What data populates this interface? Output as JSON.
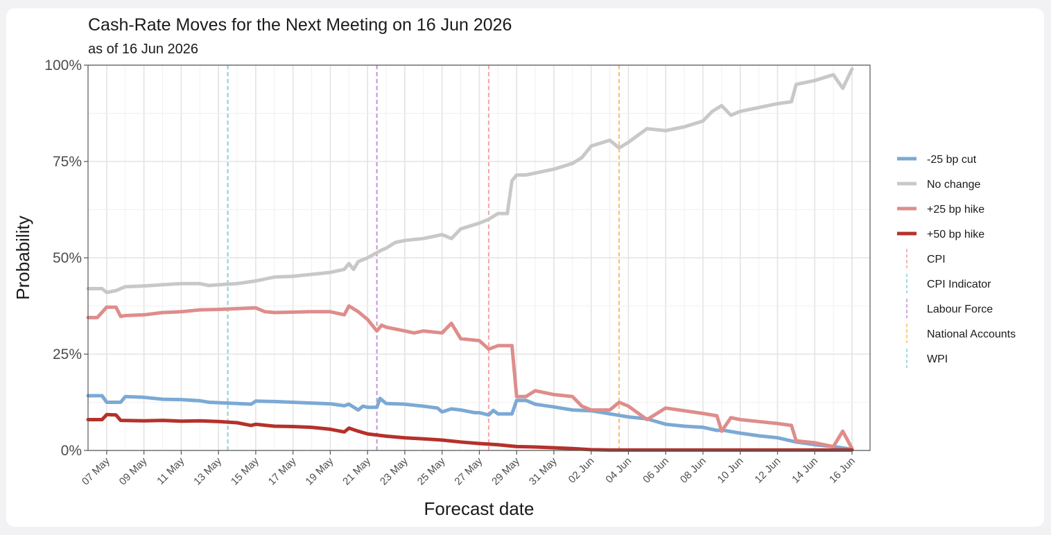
{
  "chart_data": {
    "type": "line",
    "title": "Cash-Rate Moves for the Next Meeting on 16 Jun 2026",
    "subtitle": "as of 16 Jun 2026",
    "xlabel": "Forecast date",
    "ylabel": "Probability",
    "ylim": [
      0,
      1
    ],
    "xlim": [
      "2026-05-06",
      "2026-06-16"
    ],
    "y_ticks": [
      {
        "value": 0,
        "label": "0%"
      },
      {
        "value": 0.25,
        "label": "25%"
      },
      {
        "value": 0.5,
        "label": "50%"
      },
      {
        "value": 0.75,
        "label": "75%"
      },
      {
        "value": 1,
        "label": "100%"
      }
    ],
    "x_ticks": [
      {
        "date": "2026-05-07",
        "label": "07 May"
      },
      {
        "date": "2026-05-09",
        "label": "09 May"
      },
      {
        "date": "2026-05-11",
        "label": "11 May"
      },
      {
        "date": "2026-05-13",
        "label": "13 May"
      },
      {
        "date": "2026-05-15",
        "label": "15 May"
      },
      {
        "date": "2026-05-17",
        "label": "17 May"
      },
      {
        "date": "2026-05-19",
        "label": "19 May"
      },
      {
        "date": "2026-05-21",
        "label": "21 May"
      },
      {
        "date": "2026-05-23",
        "label": "23 May"
      },
      {
        "date": "2026-05-25",
        "label": "25 May"
      },
      {
        "date": "2026-05-27",
        "label": "27 May"
      },
      {
        "date": "2026-05-29",
        "label": "29 May"
      },
      {
        "date": "2026-05-31",
        "label": "31 May"
      },
      {
        "date": "2026-06-02",
        "label": "02 Jun"
      },
      {
        "date": "2026-06-04",
        "label": "04 Jun"
      },
      {
        "date": "2026-06-06",
        "label": "06 Jun"
      },
      {
        "date": "2026-06-08",
        "label": "08 Jun"
      },
      {
        "date": "2026-06-10",
        "label": "10 Jun"
      },
      {
        "date": "2026-06-12",
        "label": "12 Jun"
      },
      {
        "date": "2026-06-14",
        "label": "14 Jun"
      },
      {
        "date": "2026-06-16",
        "label": "16 Jun"
      }
    ],
    "grid": true,
    "legend_position": "right",
    "series": [
      {
        "name": "-25 bp cut",
        "color": "#7ca9d4",
        "points": [
          [
            "2026-05-06",
            0.142
          ],
          [
            "2026-05-06T18:00",
            0.142
          ],
          [
            "2026-05-07",
            0.125
          ],
          [
            "2026-05-07T18:00",
            0.125
          ],
          [
            "2026-05-08",
            0.14
          ],
          [
            "2026-05-09",
            0.138
          ],
          [
            "2026-05-10",
            0.133
          ],
          [
            "2026-05-11",
            0.132
          ],
          [
            "2026-05-12",
            0.129
          ],
          [
            "2026-05-12T12:00",
            0.125
          ],
          [
            "2026-05-14",
            0.122
          ],
          [
            "2026-05-14T18:00",
            0.12
          ],
          [
            "2026-05-15",
            0.128
          ],
          [
            "2026-05-16",
            0.127
          ],
          [
            "2026-05-17",
            0.125
          ],
          [
            "2026-05-18",
            0.123
          ],
          [
            "2026-05-19",
            0.121
          ],
          [
            "2026-05-19T18:00",
            0.116
          ],
          [
            "2026-05-20",
            0.12
          ],
          [
            "2026-05-20T12:00",
            0.105
          ],
          [
            "2026-05-20T18:00",
            0.115
          ],
          [
            "2026-05-21",
            0.112
          ],
          [
            "2026-05-21T12:00",
            0.112
          ],
          [
            "2026-05-21T16:00",
            0.135
          ],
          [
            "2026-05-22",
            0.122
          ],
          [
            "2026-05-23",
            0.12
          ],
          [
            "2026-05-24",
            0.115
          ],
          [
            "2026-05-24T18:00",
            0.11
          ],
          [
            "2026-05-25",
            0.1
          ],
          [
            "2026-05-25T12:00",
            0.108
          ],
          [
            "2026-05-26",
            0.105
          ],
          [
            "2026-05-26T18:00",
            0.098
          ],
          [
            "2026-05-27",
            0.098
          ],
          [
            "2026-05-27T12:00",
            0.092
          ],
          [
            "2026-05-27T18:00",
            0.104
          ],
          [
            "2026-05-28",
            0.095
          ],
          [
            "2026-05-28T18:00",
            0.095
          ],
          [
            "2026-05-29",
            0.13
          ],
          [
            "2026-05-29T12:00",
            0.13
          ],
          [
            "2026-05-30",
            0.12
          ],
          [
            "2026-05-31",
            0.113
          ],
          [
            "2026-06-01",
            0.105
          ],
          [
            "2026-06-02",
            0.103
          ],
          [
            "2026-06-03",
            0.095
          ],
          [
            "2026-06-04",
            0.087
          ],
          [
            "2026-06-05",
            0.082
          ],
          [
            "2026-06-06",
            0.068
          ],
          [
            "2026-06-07",
            0.063
          ],
          [
            "2026-06-08",
            0.06
          ],
          [
            "2026-06-08T18:00",
            0.052
          ],
          [
            "2026-06-09",
            0.053
          ],
          [
            "2026-06-10",
            0.045
          ],
          [
            "2026-06-11",
            0.038
          ],
          [
            "2026-06-12",
            0.033
          ],
          [
            "2026-06-13",
            0.022
          ],
          [
            "2026-06-14",
            0.015
          ],
          [
            "2026-06-15",
            0.01
          ],
          [
            "2026-06-16",
            0.003
          ]
        ]
      },
      {
        "name": "No change",
        "color": "#c8c8c8",
        "points": [
          [
            "2026-05-06",
            0.42
          ],
          [
            "2026-05-06T18:00",
            0.42
          ],
          [
            "2026-05-07",
            0.41
          ],
          [
            "2026-05-07T12:00",
            0.415
          ],
          [
            "2026-05-08",
            0.425
          ],
          [
            "2026-05-09",
            0.427
          ],
          [
            "2026-05-10",
            0.43
          ],
          [
            "2026-05-11",
            0.433
          ],
          [
            "2026-05-12",
            0.433
          ],
          [
            "2026-05-12T12:00",
            0.428
          ],
          [
            "2026-05-13",
            0.43
          ],
          [
            "2026-05-14",
            0.433
          ],
          [
            "2026-05-15",
            0.44
          ],
          [
            "2026-05-16",
            0.45
          ],
          [
            "2026-05-17",
            0.452
          ],
          [
            "2026-05-18",
            0.457
          ],
          [
            "2026-05-19",
            0.462
          ],
          [
            "2026-05-19T18:00",
            0.47
          ],
          [
            "2026-05-20",
            0.485
          ],
          [
            "2026-05-20T06:00",
            0.47
          ],
          [
            "2026-05-20T12:00",
            0.49
          ],
          [
            "2026-05-21",
            0.5
          ],
          [
            "2026-05-21T18:00",
            0.52
          ],
          [
            "2026-05-22",
            0.525
          ],
          [
            "2026-05-22T12:00",
            0.54
          ],
          [
            "2026-05-23",
            0.545
          ],
          [
            "2026-05-24",
            0.55
          ],
          [
            "2026-05-25",
            0.56
          ],
          [
            "2026-05-25T12:00",
            0.55
          ],
          [
            "2026-05-26",
            0.575
          ],
          [
            "2026-05-27",
            0.59
          ],
          [
            "2026-05-27T12:00",
            0.6
          ],
          [
            "2026-05-28",
            0.615
          ],
          [
            "2026-05-28T12:00",
            0.615
          ],
          [
            "2026-05-28T18:00",
            0.7
          ],
          [
            "2026-05-29",
            0.715
          ],
          [
            "2026-05-29T12:00",
            0.715
          ],
          [
            "2026-05-30",
            0.72
          ],
          [
            "2026-05-31",
            0.73
          ],
          [
            "2026-06-01",
            0.745
          ],
          [
            "2026-06-01T12:00",
            0.76
          ],
          [
            "2026-06-02",
            0.79
          ],
          [
            "2026-06-03",
            0.805
          ],
          [
            "2026-06-03T12:00",
            0.785
          ],
          [
            "2026-06-04",
            0.8
          ],
          [
            "2026-06-05",
            0.835
          ],
          [
            "2026-06-06",
            0.83
          ],
          [
            "2026-06-07",
            0.84
          ],
          [
            "2026-06-08",
            0.855
          ],
          [
            "2026-06-08T12:00",
            0.88
          ],
          [
            "2026-06-09",
            0.895
          ],
          [
            "2026-06-09T12:00",
            0.87
          ],
          [
            "2026-06-10",
            0.88
          ],
          [
            "2026-06-11",
            0.89
          ],
          [
            "2026-06-12",
            0.9
          ],
          [
            "2026-06-12T18:00",
            0.905
          ],
          [
            "2026-06-13",
            0.95
          ],
          [
            "2026-06-14",
            0.96
          ],
          [
            "2026-06-15",
            0.975
          ],
          [
            "2026-06-15T12:00",
            0.94
          ],
          [
            "2026-06-16",
            0.99
          ]
        ]
      },
      {
        "name": "+25 bp hike",
        "color": "#de8d8b",
        "points": [
          [
            "2026-05-06",
            0.345
          ],
          [
            "2026-05-06T12:00",
            0.345
          ],
          [
            "2026-05-07",
            0.372
          ],
          [
            "2026-05-07T12:00",
            0.372
          ],
          [
            "2026-05-07T18:00",
            0.348
          ],
          [
            "2026-05-08",
            0.35
          ],
          [
            "2026-05-09",
            0.352
          ],
          [
            "2026-05-10",
            0.358
          ],
          [
            "2026-05-11",
            0.36
          ],
          [
            "2026-05-12",
            0.365
          ],
          [
            "2026-05-13",
            0.366
          ],
          [
            "2026-05-14",
            0.368
          ],
          [
            "2026-05-15",
            0.37
          ],
          [
            "2026-05-15T12:00",
            0.36
          ],
          [
            "2026-05-16",
            0.358
          ],
          [
            "2026-05-18",
            0.36
          ],
          [
            "2026-05-19",
            0.36
          ],
          [
            "2026-05-19T18:00",
            0.352
          ],
          [
            "2026-05-20",
            0.375
          ],
          [
            "2026-05-20T12:00",
            0.36
          ],
          [
            "2026-05-21",
            0.34
          ],
          [
            "2026-05-21T12:00",
            0.31
          ],
          [
            "2026-05-21T18:00",
            0.325
          ],
          [
            "2026-05-22",
            0.32
          ],
          [
            "2026-05-23",
            0.31
          ],
          [
            "2026-05-23T12:00",
            0.305
          ],
          [
            "2026-05-24",
            0.31
          ],
          [
            "2026-05-25",
            0.305
          ],
          [
            "2026-05-25T12:00",
            0.33
          ],
          [
            "2026-05-26",
            0.29
          ],
          [
            "2026-05-27",
            0.285
          ],
          [
            "2026-05-27T12:00",
            0.263
          ],
          [
            "2026-05-28",
            0.272
          ],
          [
            "2026-05-28T18:00",
            0.272
          ],
          [
            "2026-05-29",
            0.14
          ],
          [
            "2026-05-29T12:00",
            0.14
          ],
          [
            "2026-05-30",
            0.155
          ],
          [
            "2026-05-31",
            0.145
          ],
          [
            "2026-06-01",
            0.14
          ],
          [
            "2026-06-01T12:00",
            0.115
          ],
          [
            "2026-06-02",
            0.105
          ],
          [
            "2026-06-03",
            0.105
          ],
          [
            "2026-06-03T12:00",
            0.125
          ],
          [
            "2026-06-04",
            0.115
          ],
          [
            "2026-06-05",
            0.08
          ],
          [
            "2026-06-06",
            0.11
          ],
          [
            "2026-06-07",
            0.103
          ],
          [
            "2026-06-08",
            0.096
          ],
          [
            "2026-06-08T18:00",
            0.09
          ],
          [
            "2026-06-09",
            0.05
          ],
          [
            "2026-06-09T12:00",
            0.085
          ],
          [
            "2026-06-10",
            0.08
          ],
          [
            "2026-06-11",
            0.075
          ],
          [
            "2026-06-12",
            0.07
          ],
          [
            "2026-06-12T18:00",
            0.065
          ],
          [
            "2026-06-13",
            0.025
          ],
          [
            "2026-06-14",
            0.02
          ],
          [
            "2026-06-15",
            0.01
          ],
          [
            "2026-06-15T12:00",
            0.05
          ],
          [
            "2026-06-16",
            0.005
          ]
        ]
      },
      {
        "name": "+50 bp hike",
        "color": "#b5312a",
        "points": [
          [
            "2026-05-06",
            0.08
          ],
          [
            "2026-05-06T18:00",
            0.08
          ],
          [
            "2026-05-07",
            0.093
          ],
          [
            "2026-05-07T12:00",
            0.092
          ],
          [
            "2026-05-07T18:00",
            0.078
          ],
          [
            "2026-05-09",
            0.077
          ],
          [
            "2026-05-10",
            0.078
          ],
          [
            "2026-05-11",
            0.076
          ],
          [
            "2026-05-12",
            0.077
          ],
          [
            "2026-05-13",
            0.075
          ],
          [
            "2026-05-14",
            0.072
          ],
          [
            "2026-05-14T18:00",
            0.065
          ],
          [
            "2026-05-15",
            0.068
          ],
          [
            "2026-05-16",
            0.063
          ],
          [
            "2026-05-17",
            0.062
          ],
          [
            "2026-05-18",
            0.06
          ],
          [
            "2026-05-19",
            0.055
          ],
          [
            "2026-05-19T18:00",
            0.048
          ],
          [
            "2026-05-20",
            0.058
          ],
          [
            "2026-05-20T12:00",
            0.05
          ],
          [
            "2026-05-21",
            0.043
          ],
          [
            "2026-05-22",
            0.037
          ],
          [
            "2026-05-23",
            0.033
          ],
          [
            "2026-05-24",
            0.03
          ],
          [
            "2026-05-25",
            0.027
          ],
          [
            "2026-05-26",
            0.022
          ],
          [
            "2026-05-27",
            0.018
          ],
          [
            "2026-05-28",
            0.015
          ],
          [
            "2026-05-29",
            0.01
          ],
          [
            "2026-05-30",
            0.009
          ],
          [
            "2026-05-31",
            0.007
          ],
          [
            "2026-06-01",
            0.005
          ],
          [
            "2026-06-02",
            0.002
          ],
          [
            "2026-06-03",
            0.001
          ],
          [
            "2026-06-16",
            0.001
          ]
        ]
      }
    ],
    "event_markers": [
      {
        "name": "CPI",
        "color": "#f4a3a0",
        "date": "2026-05-27T12:00"
      },
      {
        "name": "CPI Indicator",
        "color": "#8fd3d8",
        "date": "2026-05-13T12:00"
      },
      {
        "name": "Labour Force",
        "color": "#c491d8",
        "date": "2026-05-21T12:00"
      },
      {
        "name": "National Accounts",
        "color": "#f4c16b",
        "date": "2026-06-03T12:00"
      },
      {
        "name": "WPI",
        "color": "#8fd3d8",
        "date": "2026-05-13T12:00"
      }
    ]
  }
}
